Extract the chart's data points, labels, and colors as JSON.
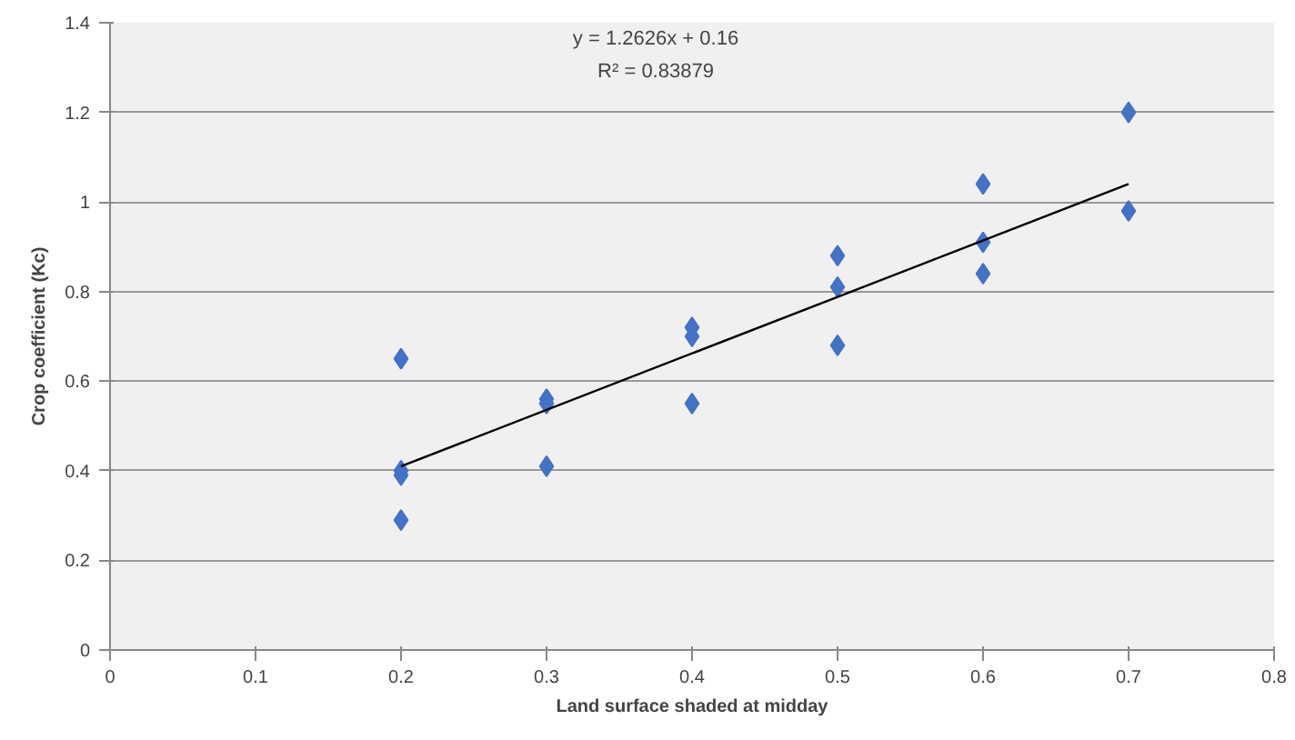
{
  "chart_data": {
    "type": "scatter",
    "xlabel": "Land surface shaded at midday",
    "ylabel": "Crop coefficient (Kc)",
    "annotations": [
      "y = 1.2626x + 0.16",
      "R² = 0.83879"
    ],
    "xlim": [
      0,
      0.8
    ],
    "xticks": [
      0,
      0.1,
      0.2,
      0.3,
      0.4,
      0.5,
      0.6,
      0.7,
      0.8
    ],
    "ylim": [
      0,
      1.4
    ],
    "yticks": [
      0,
      0.2,
      0.4,
      0.6,
      0.8,
      1,
      1.2,
      1.4
    ],
    "grid": "y",
    "marker": "diamond",
    "series": [
      {
        "color": "#4472c4",
        "x": [
          0.2,
          0.2,
          0.2,
          0.2,
          0.3,
          0.3,
          0.3,
          0.4,
          0.4,
          0.4,
          0.5,
          0.5,
          0.5,
          0.6,
          0.6,
          0.6,
          0.7,
          0.7
        ],
        "values": [
          0.65,
          0.4,
          0.39,
          0.29,
          0.56,
          0.55,
          0.41,
          0.72,
          0.7,
          0.55,
          0.88,
          0.81,
          0.68,
          1.04,
          0.91,
          0.84,
          1.2,
          0.98
        ]
      },
      {
        "type": "line",
        "color": "#000000",
        "line_style": "solid",
        "marker": "none",
        "x": [
          0.2,
          0.7
        ],
        "values": [
          0.41,
          1.04
        ]
      }
    ]
  }
}
